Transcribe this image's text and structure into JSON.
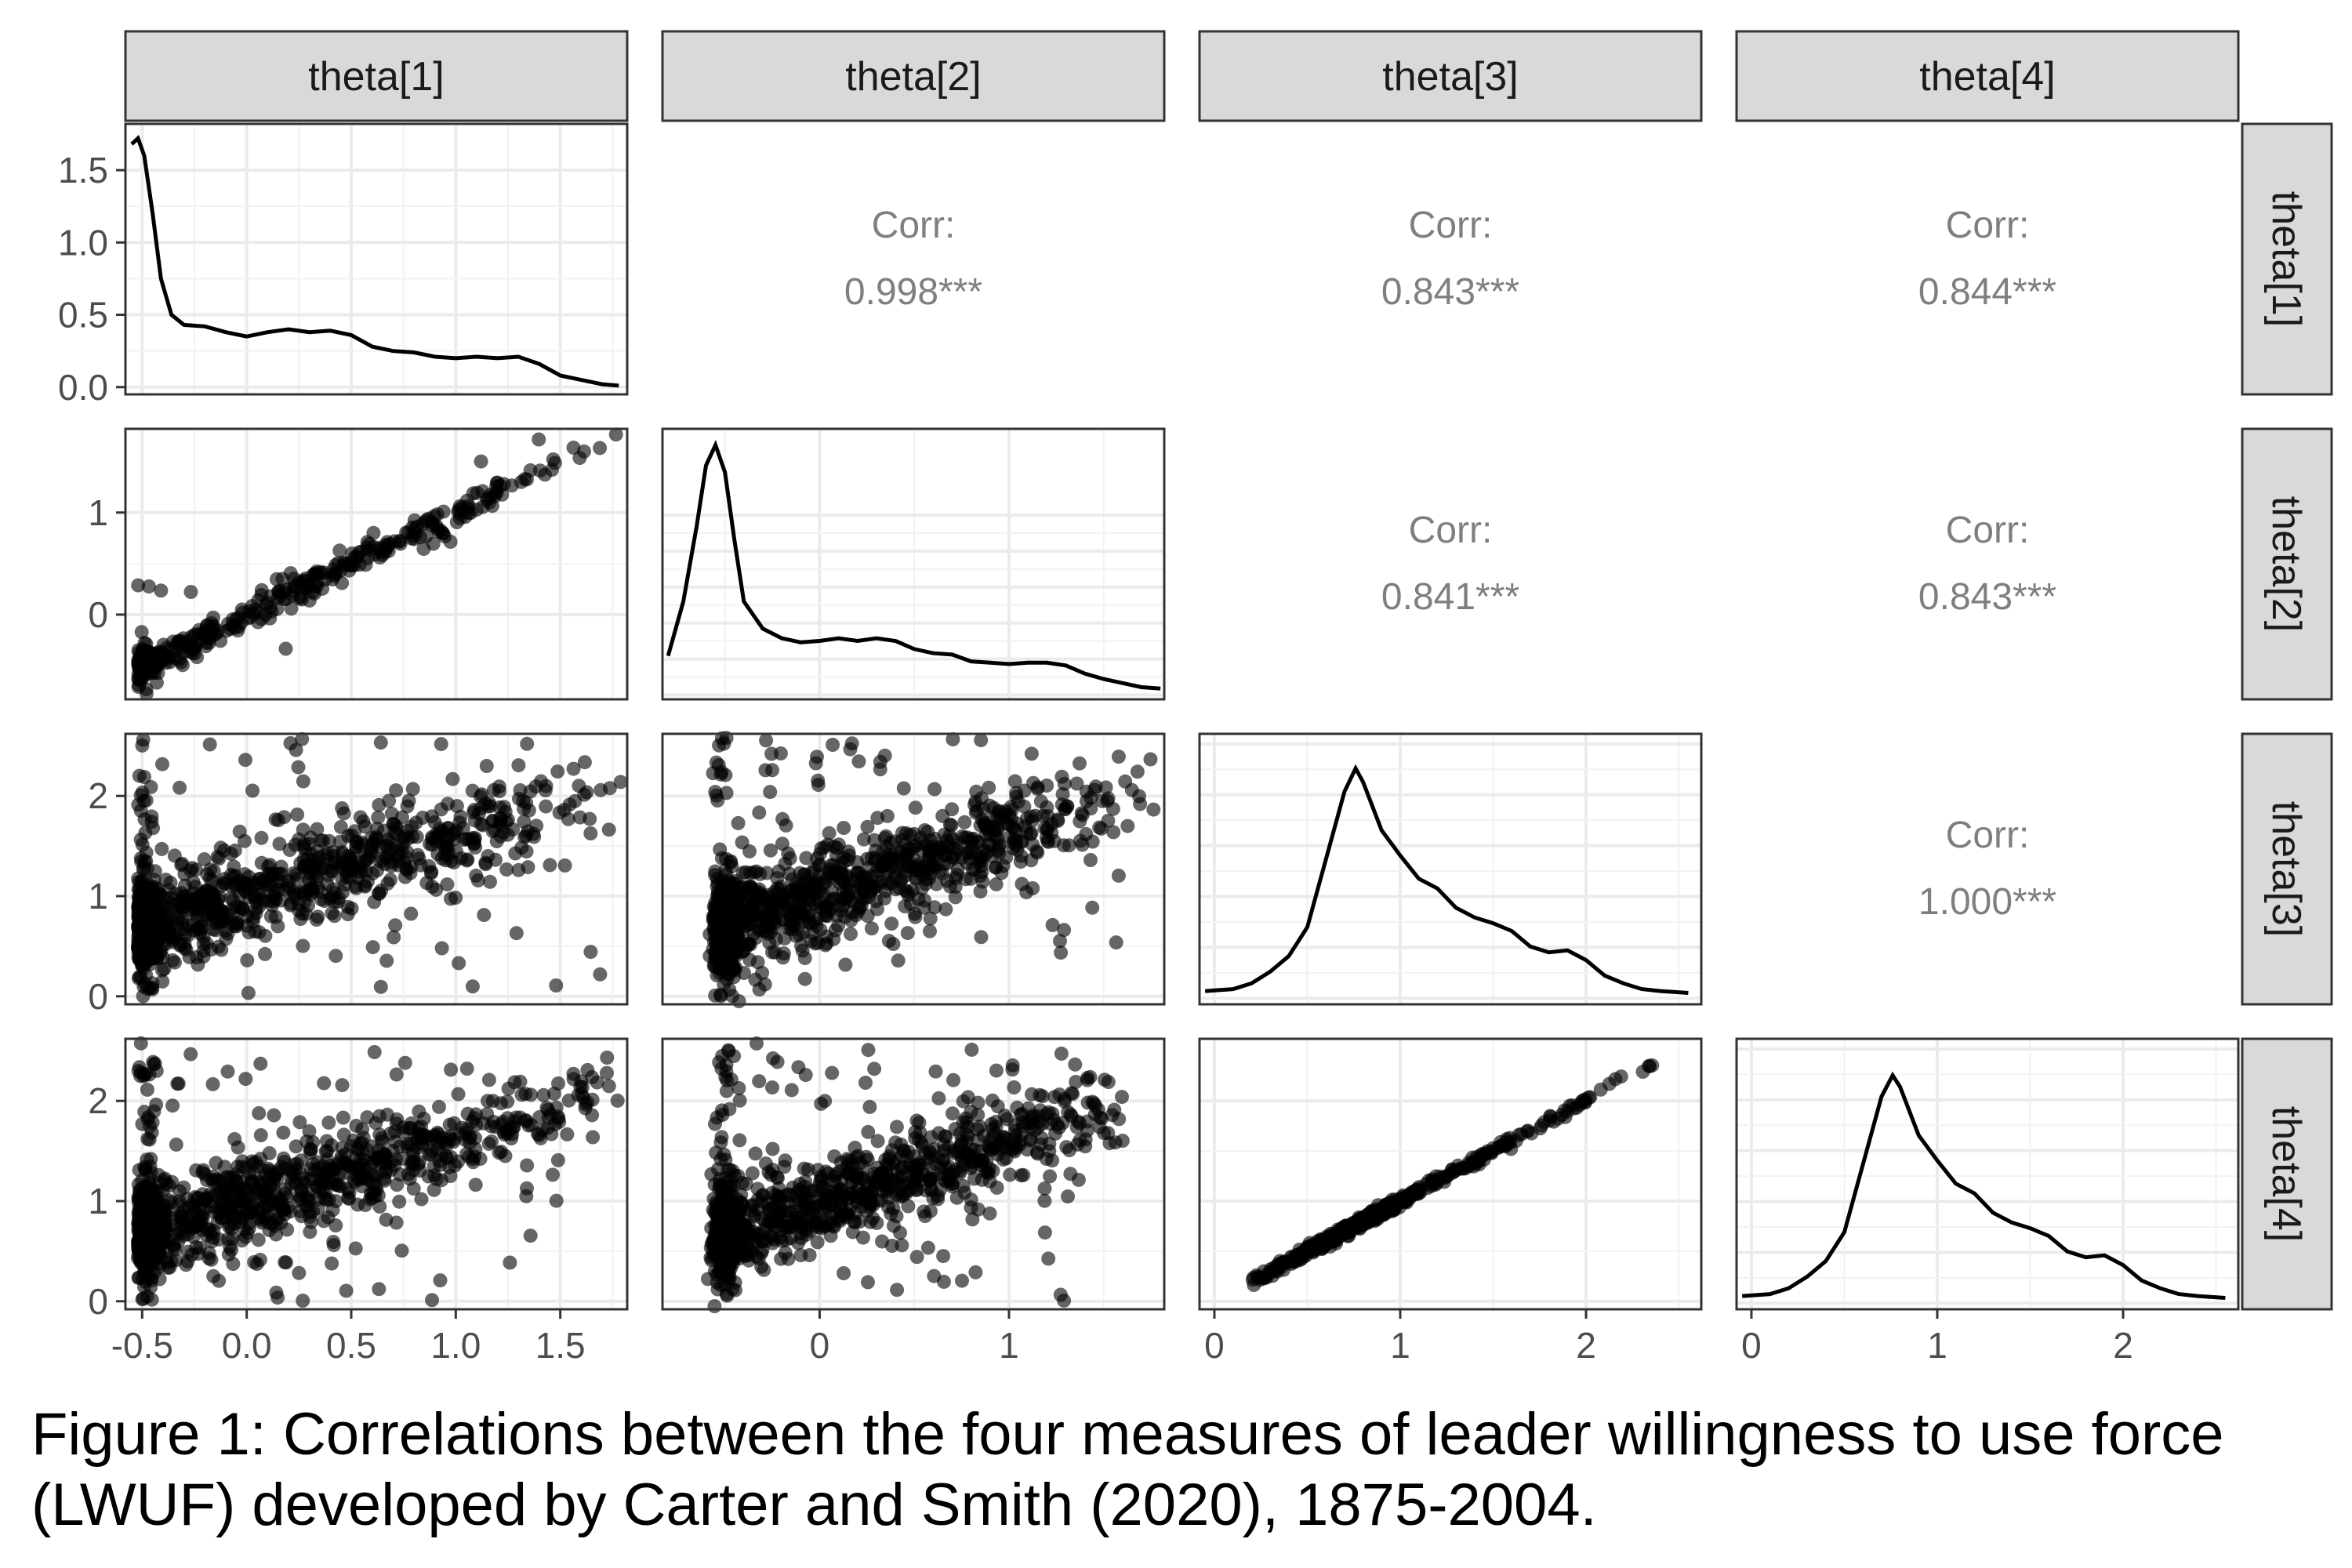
{
  "figure": {
    "caption": "Figure 1: Correlations between the four measures of leader willingness to use force (LWUF) developed by Carter and Smith (2020), 1875-2004."
  },
  "chart_data": {
    "type": "pairs",
    "variables": [
      "theta[1]",
      "theta[2]",
      "theta[3]",
      "theta[4]"
    ],
    "corr_label": "Corr:",
    "correlations": [
      {
        "row": 0,
        "col": 1,
        "value": "0.998***"
      },
      {
        "row": 0,
        "col": 2,
        "value": "0.843***"
      },
      {
        "row": 0,
        "col": 3,
        "value": "0.844***"
      },
      {
        "row": 1,
        "col": 2,
        "value": "0.841***"
      },
      {
        "row": 1,
        "col": 3,
        "value": "0.843***"
      },
      {
        "row": 2,
        "col": 3,
        "value": "1.000***"
      }
    ],
    "x_ranges": [
      [
        -0.58,
        1.82
      ],
      [
        -0.83,
        1.82
      ],
      [
        -0.08,
        2.62
      ],
      [
        -0.08,
        2.62
      ]
    ],
    "x_ticks": [
      [
        {
          "v": -0.5,
          "label": "-0.5"
        },
        {
          "v": 0,
          "label": "0.0"
        },
        {
          "v": 0.5,
          "label": "0.5"
        },
        {
          "v": 1,
          "label": "1.0"
        },
        {
          "v": 1.5,
          "label": "1.5"
        }
      ],
      [
        {
          "v": 0,
          "label": "0"
        },
        {
          "v": 1,
          "label": "1"
        }
      ],
      [
        {
          "v": 0,
          "label": "0"
        },
        {
          "v": 1,
          "label": "1"
        },
        {
          "v": 2,
          "label": "2"
        }
      ],
      [
        {
          "v": 0,
          "label": "0"
        },
        {
          "v": 1,
          "label": "1"
        },
        {
          "v": 2,
          "label": "2"
        }
      ]
    ],
    "y_ranges": [
      [
        -0.05,
        1.82
      ],
      [
        -0.83,
        1.82
      ],
      [
        -0.08,
        2.62
      ],
      [
        -0.08,
        2.62
      ]
    ],
    "y_ticks": [
      [
        {
          "v": 0,
          "label": "0.0"
        },
        {
          "v": 0.5,
          "label": "0.5"
        },
        {
          "v": 1,
          "label": "1.0"
        },
        {
          "v": 1.5,
          "label": "1.5"
        }
      ],
      [
        {
          "v": 0,
          "label": "0"
        },
        {
          "v": 1,
          "label": "1"
        }
      ],
      [
        {
          "v": 0,
          "label": "0"
        },
        {
          "v": 1,
          "label": "1"
        },
        {
          "v": 2,
          "label": "2"
        }
      ],
      [
        {
          "v": 0,
          "label": "0"
        },
        {
          "v": 1,
          "label": "1"
        },
        {
          "v": 2,
          "label": "2"
        }
      ]
    ],
    "densities": [
      {
        "var": "theta[1]",
        "ylim": [
          0,
          1.85
        ],
        "points": [
          [
            -0.55,
            1.68
          ],
          [
            -0.52,
            1.72
          ],
          [
            -0.49,
            1.6
          ],
          [
            -0.45,
            1.2
          ],
          [
            -0.41,
            0.75
          ],
          [
            -0.36,
            0.5
          ],
          [
            -0.3,
            0.43
          ],
          [
            -0.2,
            0.42
          ],
          [
            -0.1,
            0.38
          ],
          [
            0.0,
            0.35
          ],
          [
            0.1,
            0.38
          ],
          [
            0.2,
            0.4
          ],
          [
            0.3,
            0.38
          ],
          [
            0.4,
            0.39
          ],
          [
            0.5,
            0.36
          ],
          [
            0.6,
            0.28
          ],
          [
            0.7,
            0.25
          ],
          [
            0.8,
            0.24
          ],
          [
            0.9,
            0.21
          ],
          [
            1.0,
            0.2
          ],
          [
            1.1,
            0.21
          ],
          [
            1.2,
            0.2
          ],
          [
            1.3,
            0.21
          ],
          [
            1.4,
            0.16
          ],
          [
            1.5,
            0.08
          ],
          [
            1.6,
            0.05
          ],
          [
            1.7,
            0.02
          ],
          [
            1.78,
            0.01
          ]
        ]
      },
      {
        "var": "theta[2]",
        "ylim": [
          0,
          1.85
        ],
        "points": [
          [
            -0.8,
            0.25
          ],
          [
            -0.72,
            0.65
          ],
          [
            -0.65,
            1.2
          ],
          [
            -0.6,
            1.65
          ],
          [
            -0.55,
            1.8
          ],
          [
            -0.5,
            1.6
          ],
          [
            -0.45,
            1.1
          ],
          [
            -0.4,
            0.65
          ],
          [
            -0.3,
            0.45
          ],
          [
            -0.2,
            0.38
          ],
          [
            -0.1,
            0.35
          ],
          [
            0.0,
            0.36
          ],
          [
            0.1,
            0.38
          ],
          [
            0.2,
            0.36
          ],
          [
            0.3,
            0.38
          ],
          [
            0.4,
            0.36
          ],
          [
            0.5,
            0.3
          ],
          [
            0.6,
            0.27
          ],
          [
            0.7,
            0.26
          ],
          [
            0.8,
            0.21
          ],
          [
            0.9,
            0.2
          ],
          [
            1.0,
            0.19
          ],
          [
            1.1,
            0.2
          ],
          [
            1.2,
            0.2
          ],
          [
            1.3,
            0.18
          ],
          [
            1.4,
            0.12
          ],
          [
            1.5,
            0.08
          ],
          [
            1.6,
            0.05
          ],
          [
            1.7,
            0.02
          ],
          [
            1.8,
            0.01
          ]
        ]
      },
      {
        "var": "theta[3]",
        "ylim": [
          0,
          1.3
        ],
        "points": [
          [
            -0.05,
            0.02
          ],
          [
            0.1,
            0.03
          ],
          [
            0.2,
            0.06
          ],
          [
            0.3,
            0.12
          ],
          [
            0.4,
            0.2
          ],
          [
            0.5,
            0.35
          ],
          [
            0.6,
            0.7
          ],
          [
            0.7,
            1.05
          ],
          [
            0.76,
            1.17
          ],
          [
            0.8,
            1.1
          ],
          [
            0.9,
            0.85
          ],
          [
            1.0,
            0.72
          ],
          [
            1.1,
            0.6
          ],
          [
            1.2,
            0.55
          ],
          [
            1.3,
            0.45
          ],
          [
            1.4,
            0.4
          ],
          [
            1.5,
            0.37
          ],
          [
            1.6,
            0.33
          ],
          [
            1.7,
            0.25
          ],
          [
            1.8,
            0.22
          ],
          [
            1.9,
            0.23
          ],
          [
            2.0,
            0.18
          ],
          [
            2.1,
            0.1
          ],
          [
            2.2,
            0.06
          ],
          [
            2.3,
            0.03
          ],
          [
            2.4,
            0.02
          ],
          [
            2.55,
            0.01
          ]
        ]
      },
      {
        "var": "theta[4]",
        "ylim": [
          0,
          1.3
        ],
        "points": [
          [
            -0.05,
            0.02
          ],
          [
            0.1,
            0.03
          ],
          [
            0.2,
            0.06
          ],
          [
            0.3,
            0.12
          ],
          [
            0.4,
            0.2
          ],
          [
            0.5,
            0.35
          ],
          [
            0.6,
            0.7
          ],
          [
            0.7,
            1.05
          ],
          [
            0.76,
            1.16
          ],
          [
            0.8,
            1.1
          ],
          [
            0.9,
            0.85
          ],
          [
            1.0,
            0.72
          ],
          [
            1.1,
            0.6
          ],
          [
            1.2,
            0.55
          ],
          [
            1.3,
            0.45
          ],
          [
            1.4,
            0.4
          ],
          [
            1.5,
            0.37
          ],
          [
            1.6,
            0.33
          ],
          [
            1.7,
            0.25
          ],
          [
            1.8,
            0.22
          ],
          [
            1.9,
            0.23
          ],
          [
            2.0,
            0.18
          ],
          [
            2.1,
            0.1
          ],
          [
            2.2,
            0.06
          ],
          [
            2.3,
            0.03
          ],
          [
            2.4,
            0.02
          ],
          [
            2.55,
            0.01
          ]
        ]
      }
    ],
    "scatter_relations": [
      {
        "x": "theta[1]",
        "y": "theta[2]",
        "slope": 1.0,
        "intercept": 0.0,
        "noise": 0.07,
        "outlier_rate": 0.04,
        "n": 420
      },
      {
        "x": "theta[1]",
        "y": "theta[3]",
        "slope": 0.6,
        "intercept": 1.0,
        "noise": 0.22,
        "outlier_rate": 0.12,
        "n": 1100
      },
      {
        "x": "theta[2]",
        "y": "theta[3]",
        "slope": 0.6,
        "intercept": 1.0,
        "noise": 0.22,
        "outlier_rate": 0.12,
        "n": 1100
      },
      {
        "x": "theta[1]",
        "y": "theta[4]",
        "slope": 0.6,
        "intercept": 1.0,
        "noise": 0.22,
        "outlier_rate": 0.12,
        "n": 1100
      },
      {
        "x": "theta[2]",
        "y": "theta[4]",
        "slope": 0.6,
        "intercept": 1.0,
        "noise": 0.22,
        "outlier_rate": 0.12,
        "n": 1100
      },
      {
        "x": "theta[3]",
        "y": "theta[4]",
        "slope": 1.0,
        "intercept": 0.0,
        "noise": 0.025,
        "outlier_rate": 0.0,
        "n": 600
      }
    ],
    "grid": true,
    "theme": "bw"
  }
}
